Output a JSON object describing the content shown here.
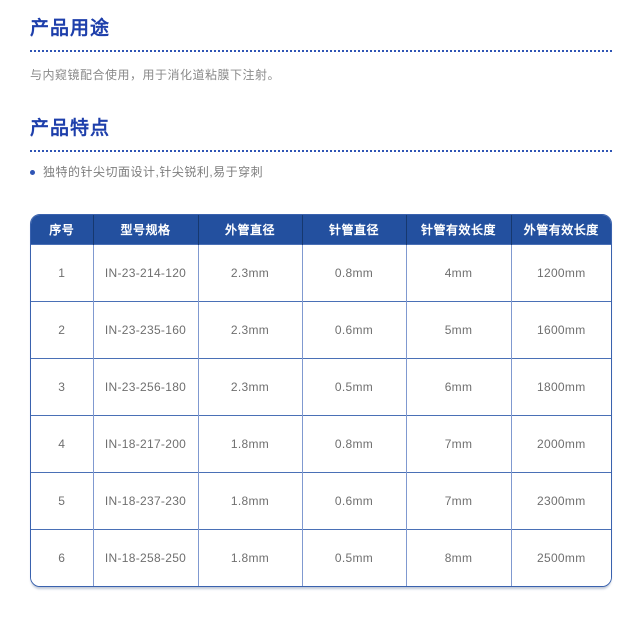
{
  "sections": {
    "usage": {
      "title": "产品用途",
      "body": "与内窥镜配合使用，用于消化道粘膜下注射。"
    },
    "features": {
      "title": "产品特点",
      "bullet": "独特的针尖切面设计,针尖锐利,易于穿刺"
    }
  },
  "table": {
    "headers": [
      "序号",
      "型号规格",
      "外管直径",
      "针管直径",
      "针管有效长度",
      "外管有效长度"
    ],
    "rows": [
      [
        "1",
        "IN-23-214-120",
        "2.3mm",
        "0.8mm",
        "4mm",
        "1200mm"
      ],
      [
        "2",
        "IN-23-235-160",
        "2.3mm",
        "0.6mm",
        "5mm",
        "1600mm"
      ],
      [
        "3",
        "IN-23-256-180",
        "2.3mm",
        "0.5mm",
        "6mm",
        "1800mm"
      ],
      [
        "4",
        "IN-18-217-200",
        "1.8mm",
        "0.8mm",
        "7mm",
        "2000mm"
      ],
      [
        "5",
        "IN-18-237-230",
        "1.8mm",
        "0.6mm",
        "7mm",
        "2300mm"
      ],
      [
        "6",
        "IN-18-258-250",
        "1.8mm",
        "0.5mm",
        "8mm",
        "2500mm"
      ]
    ]
  },
  "colors": {
    "title_blue": "#1e3fab",
    "divider_blue": "#2f55b5",
    "header_bg": "#23509f",
    "header_text": "#ffffff",
    "outer_border": "#3a62ae",
    "row_line": "#4a70b6",
    "column_line": "#8099d0",
    "body_text": "#8a8a8a",
    "cell_text": "#6f6f6f"
  }
}
